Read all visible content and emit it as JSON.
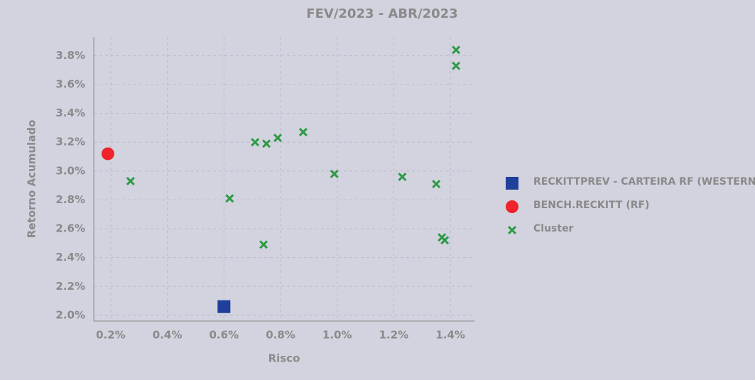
{
  "chart_data": {
    "type": "scatter",
    "title": "FEV/2023 - ABR/2023",
    "x_label": "Risco",
    "y_label": "Retorno Acumulado",
    "xlim": [
      0.14,
      1.485
    ],
    "ylim": [
      1.96,
      3.93
    ],
    "xticks": [
      {
        "value": 0.2,
        "label": "0.2%"
      },
      {
        "value": 0.4,
        "label": "0.4%"
      },
      {
        "value": 0.6,
        "label": "0.6%"
      },
      {
        "value": 0.8,
        "label": "0.8%"
      },
      {
        "value": 1.0,
        "label": "1.0%"
      },
      {
        "value": 1.2,
        "label": "1.2%"
      },
      {
        "value": 1.4,
        "label": "1.4%"
      }
    ],
    "yticks": [
      {
        "value": 2.0,
        "label": "2.0%"
      },
      {
        "value": 2.2,
        "label": "2.2%"
      },
      {
        "value": 2.4,
        "label": "2.4%"
      },
      {
        "value": 2.6,
        "label": "2.6%"
      },
      {
        "value": 2.8,
        "label": "2.8%"
      },
      {
        "value": 3.0,
        "label": "3.0%"
      },
      {
        "value": 3.2,
        "label": "3.2%"
      },
      {
        "value": 3.4,
        "label": "3.4%"
      },
      {
        "value": 3.6,
        "label": "3.6%"
      },
      {
        "value": 3.8,
        "label": "3.8%"
      }
    ],
    "grid": true,
    "legend": "right",
    "series": [
      {
        "name": "RECKITTPREV - CARTEIRA RF (WESTERN)",
        "color": "#1f3f9a",
        "marker": "square",
        "x": [
          0.6
        ],
        "values": [
          2.06
        ]
      },
      {
        "name": "BENCH.RECKITT (RF)",
        "color": "#f0222a",
        "marker": "circle",
        "x": [
          0.19
        ],
        "values": [
          3.12
        ]
      },
      {
        "name": "Cluster",
        "color": "#2e9a45",
        "marker": "x",
        "x": [
          0.27,
          0.62,
          0.71,
          0.75,
          0.79,
          0.88,
          0.74,
          0.99,
          1.23,
          1.35,
          1.37,
          1.38,
          1.42,
          1.42
        ],
        "values": [
          2.93,
          2.81,
          3.2,
          3.19,
          3.23,
          3.27,
          2.49,
          2.98,
          2.96,
          2.91,
          2.54,
          2.52,
          3.84,
          3.73
        ]
      }
    ]
  }
}
